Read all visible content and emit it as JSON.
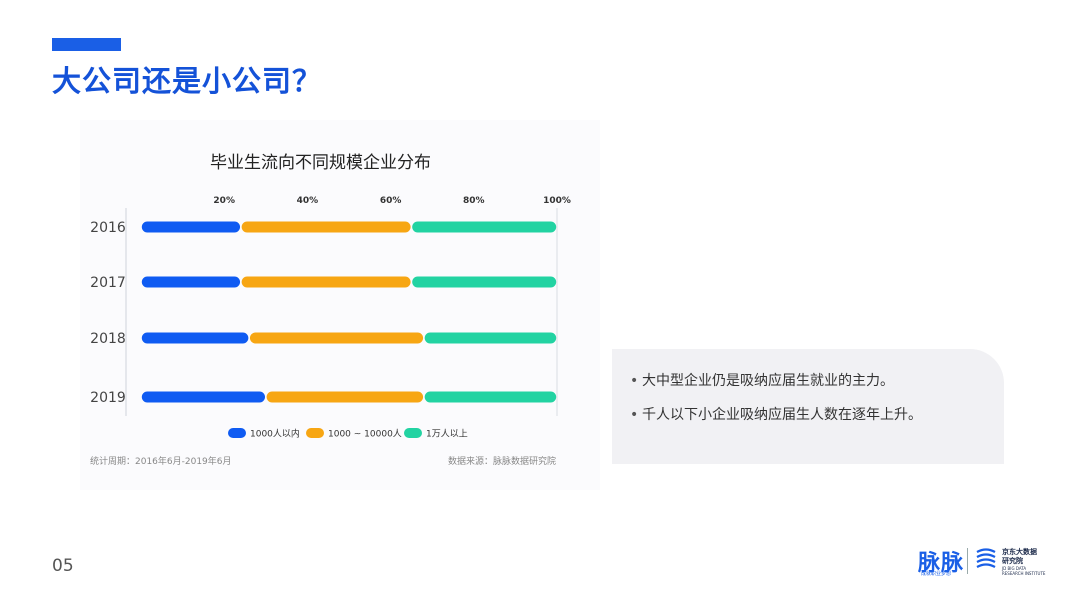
{
  "header": {
    "title": "大公司还是小公司？"
  },
  "page_number": "05",
  "colors": {
    "accent": "#1a5fe6",
    "series": [
      "#0f5bf2",
      "#f7a613",
      "#22d3a2"
    ]
  },
  "chart_data": {
    "type": "bar",
    "orientation": "horizontal",
    "stacked": "percent",
    "title": "毕业生流向不同规模企业分布",
    "categories": [
      "2016",
      "2017",
      "2018",
      "2019"
    ],
    "x_ticks": [
      "20%",
      "40%",
      "60%",
      "80%",
      "100%"
    ],
    "xlim": [
      0,
      100
    ],
    "series": [
      {
        "name": "1000人以内",
        "values": [
          24,
          24,
          26,
          30
        ]
      },
      {
        "name": "1000 ~ 10000人",
        "values": [
          41,
          41,
          42,
          38
        ]
      },
      {
        "name": "1万人以上",
        "values": [
          35,
          35,
          32,
          32
        ]
      }
    ],
    "legend_position": "bottom",
    "grid": false
  },
  "footer": {
    "period": "统计周期：2016年6月-2019年6月",
    "source": "数据来源：脉脉数据研究院"
  },
  "notes": [
    "大中型企业仍是吸纳应届生就业的主力。",
    "千人以下小企业吸纳应届生人数在逐年上升。"
  ],
  "logos": {
    "maimai": "脉脉",
    "maimai_sub": "成就职业梦想",
    "jd_name_line1": "京东大数据",
    "jd_name_line2": "研究院",
    "jd_sub": "JD BIG DATA RESEARCH INSTITUTE"
  }
}
